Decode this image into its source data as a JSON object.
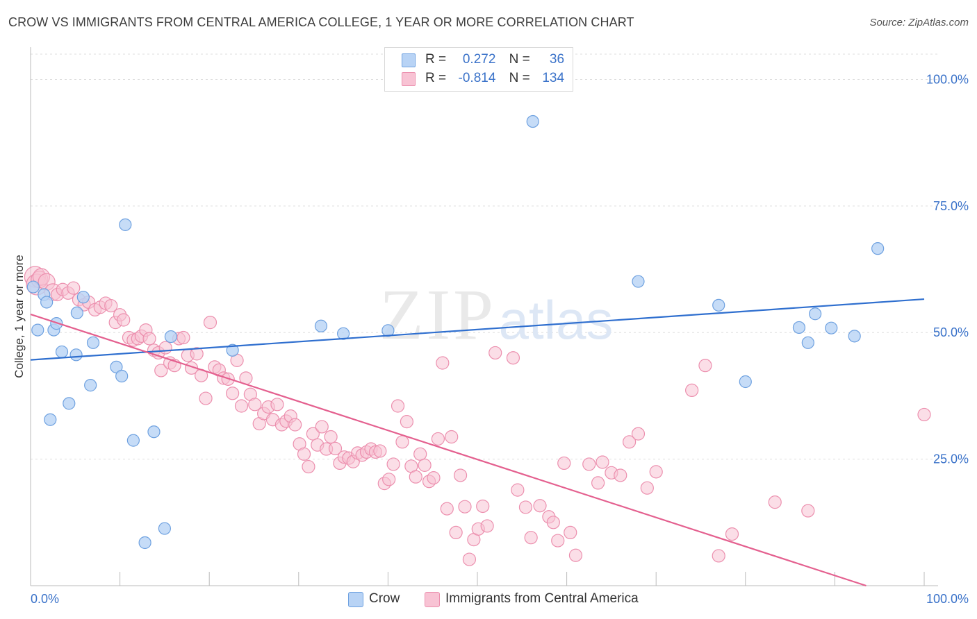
{
  "title": "CROW VS IMMIGRANTS FROM CENTRAL AMERICA COLLEGE, 1 YEAR OR MORE CORRELATION CHART",
  "source": "Source: ZipAtlas.com",
  "watermark": {
    "main": "ZIP",
    "sub": "atlas"
  },
  "colors": {
    "crow_fill": "#b8d3f5",
    "crow_stroke": "#6ea1e0",
    "crow_line": "#2f6fcf",
    "imm_fill": "#f8c3d4",
    "imm_stroke": "#ec8fae",
    "imm_line": "#e4608f",
    "axis_label": "#3a72c9",
    "grid": "#dddddd"
  },
  "legend": {
    "rows": [
      {
        "r_label": "R =",
        "r_value": "0.272",
        "n_label": "N =",
        "n_value": "36"
      },
      {
        "r_label": "R =",
        "r_value": "-0.814",
        "n_label": "N =",
        "n_value": "134"
      }
    ]
  },
  "bottom_legend": {
    "crow": "Crow",
    "imm": "Immigrants from Central America"
  },
  "chart_data": {
    "type": "scatter",
    "title": "CROW VS IMMIGRANTS FROM CENTRAL AMERICA COLLEGE, 1 YEAR OR MORE CORRELATION CHART",
    "xlabel": "",
    "ylabel": "College, 1 year or more",
    "xlim": [
      0,
      100
    ],
    "ylim": [
      0,
      105
    ],
    "x_tick_labels": [
      "0.0%",
      "100.0%"
    ],
    "y_tick_labels": [
      "25.0%",
      "50.0%",
      "75.0%",
      "100.0%"
    ],
    "y_ticks": [
      25,
      50,
      75,
      100
    ],
    "grid": true,
    "legend_position": "top-center",
    "series": [
      {
        "name": "Crow",
        "trend": {
          "x": [
            0,
            100
          ],
          "y": [
            44.6,
            56.6
          ]
        },
        "points": [
          [
            0.3,
            59.0
          ],
          [
            1.5,
            57.5
          ],
          [
            1.8,
            56.0
          ],
          [
            0.8,
            50.5
          ],
          [
            2.6,
            50.5
          ],
          [
            2.9,
            51.8
          ],
          [
            3.5,
            46.2
          ],
          [
            5.1,
            45.6
          ],
          [
            5.2,
            53.9
          ],
          [
            5.9,
            57.0
          ],
          [
            7.0,
            48.0
          ],
          [
            2.2,
            32.8
          ],
          [
            4.3,
            36.0
          ],
          [
            6.7,
            39.6
          ],
          [
            9.6,
            43.2
          ],
          [
            10.2,
            41.4
          ],
          [
            10.6,
            71.3
          ],
          [
            11.5,
            28.7
          ],
          [
            12.8,
            8.5
          ],
          [
            13.8,
            30.4
          ],
          [
            15.0,
            11.3
          ],
          [
            15.7,
            49.2
          ],
          [
            22.6,
            46.5
          ],
          [
            32.5,
            51.3
          ],
          [
            35.0,
            49.8
          ],
          [
            40.0,
            50.4
          ],
          [
            56.2,
            91.7
          ],
          [
            68.0,
            60.1
          ],
          [
            77.0,
            55.4
          ],
          [
            80.0,
            40.3
          ],
          [
            86.0,
            51.0
          ],
          [
            87.0,
            48.0
          ],
          [
            87.8,
            53.7
          ],
          [
            89.6,
            50.9
          ],
          [
            92.2,
            49.3
          ],
          [
            94.8,
            66.6
          ]
        ]
      },
      {
        "name": "Immigrants from Central America",
        "trend": {
          "x": [
            0,
            93.5
          ],
          "y": [
            53.6,
            0
          ]
        },
        "points": [
          [
            0.5,
            61.0
          ],
          [
            0.7,
            59.5
          ],
          [
            1.0,
            60.5
          ],
          [
            1.2,
            61.0
          ],
          [
            1.8,
            60.0
          ],
          [
            2.5,
            58.0
          ],
          [
            3.0,
            57.5
          ],
          [
            3.6,
            58.5
          ],
          [
            4.2,
            57.8
          ],
          [
            4.8,
            58.8
          ],
          [
            5.4,
            56.5
          ],
          [
            6.0,
            55.5
          ],
          [
            6.5,
            56.0
          ],
          [
            7.2,
            54.5
          ],
          [
            7.8,
            55.0
          ],
          [
            8.4,
            55.8
          ],
          [
            9.0,
            55.3
          ],
          [
            9.5,
            52.0
          ],
          [
            10.0,
            53.5
          ],
          [
            10.4,
            52.5
          ],
          [
            11.0,
            49.0
          ],
          [
            11.5,
            48.5
          ],
          [
            12.0,
            48.8
          ],
          [
            12.4,
            49.3
          ],
          [
            12.9,
            50.5
          ],
          [
            13.3,
            48.8
          ],
          [
            13.8,
            46.5
          ],
          [
            14.3,
            46.0
          ],
          [
            14.6,
            42.5
          ],
          [
            15.1,
            47.0
          ],
          [
            15.6,
            44.0
          ],
          [
            16.1,
            43.5
          ],
          [
            16.6,
            48.8
          ],
          [
            17.1,
            49.0
          ],
          [
            17.6,
            45.5
          ],
          [
            18.0,
            43.0
          ],
          [
            18.6,
            45.8
          ],
          [
            19.1,
            41.5
          ],
          [
            19.6,
            37.0
          ],
          [
            20.1,
            52.0
          ],
          [
            20.6,
            43.2
          ],
          [
            21.1,
            42.6
          ],
          [
            21.6,
            41.0
          ],
          [
            22.1,
            40.8
          ],
          [
            22.6,
            38.0
          ],
          [
            23.1,
            44.5
          ],
          [
            23.6,
            35.5
          ],
          [
            24.1,
            41.0
          ],
          [
            24.6,
            37.8
          ],
          [
            25.1,
            35.8
          ],
          [
            25.6,
            32.0
          ],
          [
            26.1,
            34.0
          ],
          [
            26.6,
            35.3
          ],
          [
            27.1,
            32.8
          ],
          [
            27.6,
            35.8
          ],
          [
            28.1,
            31.8
          ],
          [
            28.6,
            32.5
          ],
          [
            29.1,
            33.5
          ],
          [
            29.6,
            31.8
          ],
          [
            30.1,
            28.0
          ],
          [
            30.6,
            26.0
          ],
          [
            31.1,
            23.5
          ],
          [
            31.6,
            30.0
          ],
          [
            32.1,
            27.8
          ],
          [
            32.6,
            31.4
          ],
          [
            33.1,
            27.0
          ],
          [
            33.6,
            29.4
          ],
          [
            34.1,
            27.1
          ],
          [
            34.6,
            24.2
          ],
          [
            35.1,
            25.4
          ],
          [
            35.6,
            25.2
          ],
          [
            36.1,
            24.5
          ],
          [
            36.6,
            26.2
          ],
          [
            37.1,
            25.8
          ],
          [
            37.6,
            26.4
          ],
          [
            38.1,
            27.0
          ],
          [
            38.6,
            26.4
          ],
          [
            39.1,
            26.6
          ],
          [
            39.6,
            20.2
          ],
          [
            40.1,
            21.0
          ],
          [
            40.6,
            24.0
          ],
          [
            41.1,
            35.5
          ],
          [
            41.6,
            28.4
          ],
          [
            42.1,
            32.4
          ],
          [
            42.6,
            23.6
          ],
          [
            43.1,
            21.5
          ],
          [
            43.6,
            26.0
          ],
          [
            44.1,
            23.8
          ],
          [
            44.6,
            20.6
          ],
          [
            45.1,
            21.3
          ],
          [
            45.6,
            29.0
          ],
          [
            46.1,
            44.0
          ],
          [
            46.6,
            15.2
          ],
          [
            47.1,
            29.4
          ],
          [
            47.6,
            10.5
          ],
          [
            48.1,
            21.8
          ],
          [
            48.6,
            15.6
          ],
          [
            49.1,
            5.2
          ],
          [
            49.6,
            9.1
          ],
          [
            50.1,
            11.2
          ],
          [
            50.6,
            15.7
          ],
          [
            51.1,
            11.8
          ],
          [
            52.0,
            46.0
          ],
          [
            54.0,
            45.0
          ],
          [
            54.5,
            18.9
          ],
          [
            55.4,
            15.5
          ],
          [
            56.0,
            9.5
          ],
          [
            57.0,
            15.8
          ],
          [
            58.0,
            13.6
          ],
          [
            58.5,
            12.5
          ],
          [
            59.0,
            8.9
          ],
          [
            59.7,
            24.2
          ],
          [
            60.4,
            10.5
          ],
          [
            61.0,
            6.0
          ],
          [
            62.5,
            24.0
          ],
          [
            63.5,
            20.3
          ],
          [
            64.0,
            24.4
          ],
          [
            65.0,
            22.3
          ],
          [
            66.0,
            21.8
          ],
          [
            67.0,
            28.4
          ],
          [
            68.0,
            30.0
          ],
          [
            69.0,
            19.3
          ],
          [
            70.0,
            22.5
          ],
          [
            74.0,
            38.6
          ],
          [
            75.5,
            43.5
          ],
          [
            77.0,
            5.9
          ],
          [
            78.5,
            10.2
          ],
          [
            83.3,
            16.5
          ],
          [
            87.0,
            14.8
          ],
          [
            100.0,
            33.8
          ]
        ]
      }
    ]
  }
}
